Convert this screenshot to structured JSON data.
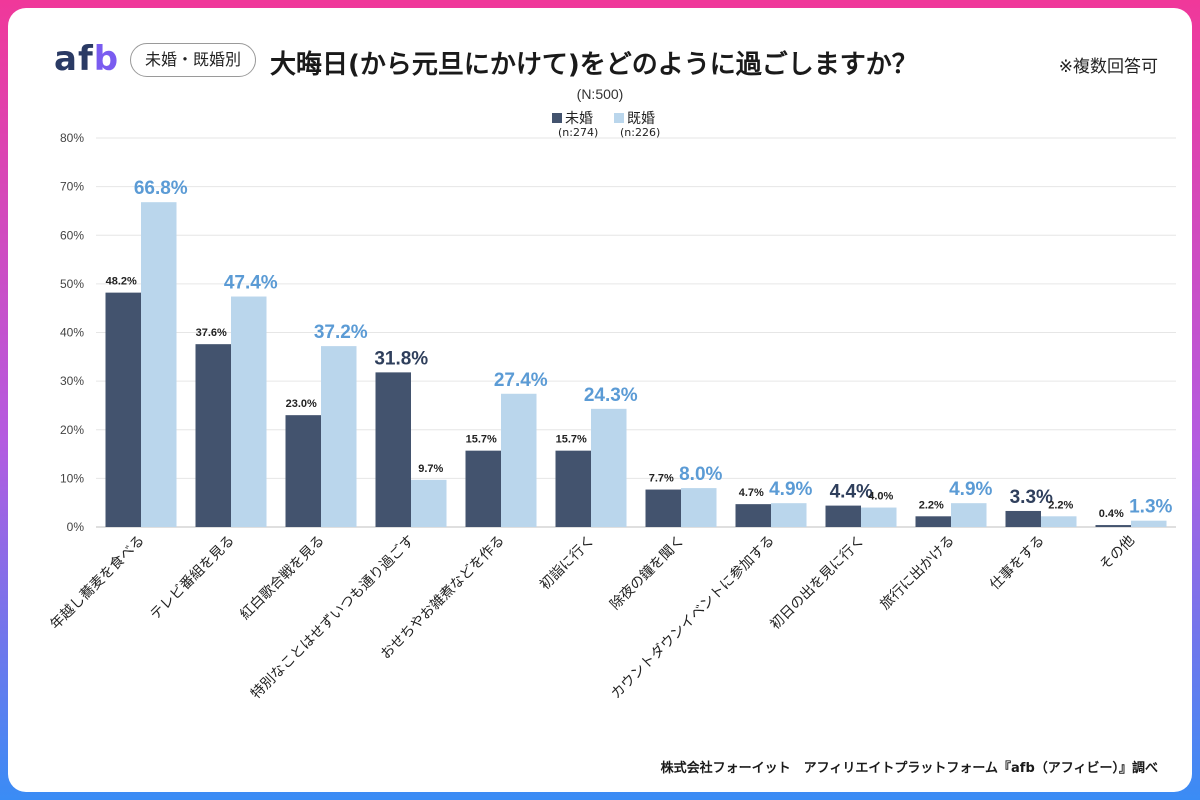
{
  "header": {
    "logo_main": "af",
    "logo_accent": "b",
    "segment_pill": "未婚・既婚別",
    "title": "大晦日(から元旦にかけて)をどのように過ごしますか？",
    "note": "※複数回答可"
  },
  "footer": {
    "source": "株式会社フォーイット　アフィリエイトプラットフォーム『afb（アフィビー）』調べ"
  },
  "colors": {
    "unmarried": "#43536e",
    "married": "#bad6ec",
    "married_label": "#5b9bd5",
    "unmarried_label": "#2f3f5c",
    "grid": "#e6e6e6"
  },
  "chart_data": {
    "type": "bar",
    "title": "大晦日(から元旦にかけて)をどのように過ごしますか？",
    "subtitle": "(N:500)",
    "xlabel": "",
    "ylabel": "",
    "ylim": [
      0,
      80
    ],
    "yticks": [
      "0%",
      "10%",
      "20%",
      "30%",
      "40%",
      "50%",
      "60%",
      "70%",
      "80%"
    ],
    "grid": true,
    "legend_position": "top-center",
    "categories": [
      "年越し蕎麦を食べる",
      "テレビ番組を見る",
      "紅白歌合戦を見る",
      "特別なことはせずいつも通り過ごす",
      "おせちやお雑煮などを作る",
      "初詣に行く",
      "除夜の鐘を聞く",
      "カウントダウンイベントに参加する",
      "初日の出を見に行く",
      "旅行に出かける",
      "仕事をする",
      "その他"
    ],
    "series": [
      {
        "name": "未婚",
        "sample": "(n:274)",
        "values": [
          48.2,
          37.6,
          23.0,
          31.8,
          15.7,
          15.7,
          7.7,
          4.7,
          4.4,
          2.2,
          3.3,
          0.4
        ],
        "labels": [
          "48.2%",
          "37.6%",
          "23.0%",
          "31.8%",
          "15.7%",
          "15.7%",
          "7.7%",
          "4.7%",
          "4.4%",
          "2.2%",
          "3.3%",
          "0.4%"
        ]
      },
      {
        "name": "既婚",
        "sample": "(n:226)",
        "values": [
          66.8,
          47.4,
          37.2,
          9.7,
          27.4,
          24.3,
          8.0,
          4.9,
          4.0,
          4.9,
          2.2,
          1.3
        ],
        "labels": [
          "66.8%",
          "47.4%",
          "37.2%",
          "9.7%",
          "27.4%",
          "24.3%",
          "8.0%",
          "4.9%",
          "4.0%",
          "4.9%",
          "2.2%",
          "1.3%"
        ]
      }
    ]
  }
}
